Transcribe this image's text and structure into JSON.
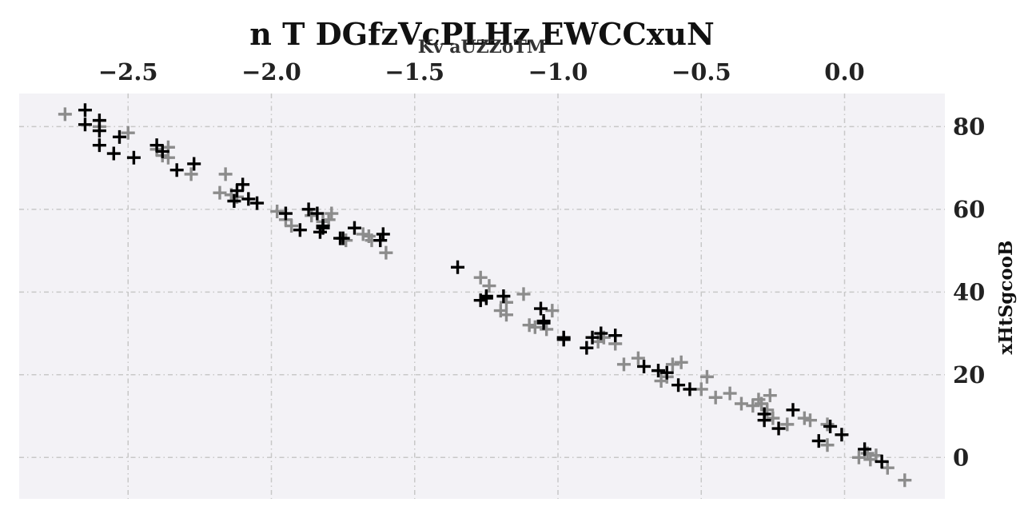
{
  "chart_data": {
    "type": "scatter",
    "title": "n T DGfzVcPLHz EWCCxuN",
    "xlabel": "Kv aUZZoTM",
    "ylabel": "xHtSgcooB",
    "xlim": [
      -2.88,
      0.35
    ],
    "ylim": [
      -10,
      88
    ],
    "x_axis_position": "top",
    "y_axis_position": "right",
    "xticks": [
      -2.5,
      -2.0,
      -1.5,
      -1.0,
      -0.5,
      0.0
    ],
    "xtick_labels": [
      "−2.5",
      "−2.0",
      "−1.5",
      "−1.0",
      "−0.5",
      "0.0"
    ],
    "yticks": [
      0,
      20,
      40,
      60,
      80
    ],
    "ytick_labels": [
      "0",
      "20",
      "40",
      "60",
      "80"
    ],
    "grid": true,
    "marker": "plus",
    "colors": {
      "background": "#f3f2f6",
      "grid": "#c8c8c8",
      "dark": "#000000",
      "light": "#8c8c8c"
    },
    "series": [
      {
        "color": "#000000",
        "points": [
          [
            -2.65,
            84
          ],
          [
            -2.65,
            80.5
          ],
          [
            -2.6,
            81.5
          ],
          [
            -2.6,
            79
          ],
          [
            -2.6,
            75.5
          ],
          [
            -2.55,
            73.5
          ],
          [
            -2.53,
            77.5
          ],
          [
            -2.48,
            72.5
          ],
          [
            -2.4,
            75.5
          ],
          [
            -2.38,
            74
          ],
          [
            -2.33,
            69.5
          ],
          [
            -2.27,
            71
          ],
          [
            -2.13,
            62
          ],
          [
            -2.12,
            64.5
          ],
          [
            -2.1,
            66
          ],
          [
            -2.08,
            62.5
          ],
          [
            -2.05,
            61.5
          ],
          [
            -1.95,
            59
          ],
          [
            -1.9,
            55
          ],
          [
            -1.87,
            60
          ],
          [
            -1.84,
            59
          ],
          [
            -1.83,
            54.5
          ],
          [
            -1.82,
            55.5
          ],
          [
            -1.82,
            56
          ],
          [
            -1.76,
            53
          ],
          [
            -1.75,
            53
          ],
          [
            -1.71,
            55.5
          ],
          [
            -1.62,
            52.5
          ],
          [
            -1.61,
            54
          ],
          [
            -1.35,
            46
          ],
          [
            -1.27,
            38
          ],
          [
            -1.25,
            38.5
          ],
          [
            -1.25,
            39
          ],
          [
            -1.19,
            39
          ],
          [
            -1.06,
            36
          ],
          [
            -1.05,
            33
          ],
          [
            -1.05,
            32.5
          ],
          [
            -0.98,
            28.5
          ],
          [
            -0.98,
            29
          ],
          [
            -0.9,
            26.5
          ],
          [
            -0.88,
            29
          ],
          [
            -0.85,
            30
          ],
          [
            -0.8,
            29.5
          ],
          [
            -0.7,
            22
          ],
          [
            -0.65,
            21
          ],
          [
            -0.62,
            20.5
          ],
          [
            -0.58,
            17.5
          ],
          [
            -0.54,
            16.5
          ],
          [
            -0.28,
            9
          ],
          [
            -0.28,
            10.5
          ],
          [
            -0.23,
            7
          ],
          [
            -0.18,
            11.5
          ],
          [
            -0.09,
            4
          ],
          [
            -0.05,
            7.5
          ],
          [
            -0.01,
            5.5
          ],
          [
            0.07,
            2
          ],
          [
            0.13,
            -1
          ]
        ]
      },
      {
        "color": "#8c8c8c",
        "points": [
          [
            -2.72,
            83
          ],
          [
            -2.6,
            80
          ],
          [
            -2.5,
            78.5
          ],
          [
            -2.4,
            74.5
          ],
          [
            -2.38,
            73
          ],
          [
            -2.36,
            72.5
          ],
          [
            -2.36,
            75
          ],
          [
            -2.28,
            68.5
          ],
          [
            -2.18,
            64
          ],
          [
            -2.16,
            68.5
          ],
          [
            -2.14,
            63.5
          ],
          [
            -2.12,
            63
          ],
          [
            -1.98,
            59.5
          ],
          [
            -1.95,
            57.5
          ],
          [
            -1.93,
            56
          ],
          [
            -1.86,
            58.5
          ],
          [
            -1.82,
            57
          ],
          [
            -1.8,
            57.5
          ],
          [
            -1.79,
            59
          ],
          [
            -1.74,
            52.5
          ],
          [
            -1.68,
            54
          ],
          [
            -1.66,
            53.5
          ],
          [
            -1.65,
            52.5
          ],
          [
            -1.6,
            49.5
          ],
          [
            -1.27,
            43.5
          ],
          [
            -1.24,
            41.5
          ],
          [
            -1.2,
            35.5
          ],
          [
            -1.18,
            37.5
          ],
          [
            -1.18,
            34.5
          ],
          [
            -1.12,
            39.5
          ],
          [
            -1.1,
            32
          ],
          [
            -1.08,
            31.5
          ],
          [
            -1.04,
            31
          ],
          [
            -1.02,
            35.5
          ],
          [
            -0.86,
            28
          ],
          [
            -0.84,
            29
          ],
          [
            -0.8,
            27.5
          ],
          [
            -0.77,
            22.5
          ],
          [
            -0.72,
            24
          ],
          [
            -0.64,
            18.5
          ],
          [
            -0.62,
            19.5
          ],
          [
            -0.6,
            22.5
          ],
          [
            -0.57,
            23
          ],
          [
            -0.5,
            16.5
          ],
          [
            -0.48,
            19.5
          ],
          [
            -0.45,
            14.5
          ],
          [
            -0.4,
            15.5
          ],
          [
            -0.36,
            13
          ],
          [
            -0.32,
            12.5
          ],
          [
            -0.3,
            14
          ],
          [
            -0.29,
            13
          ],
          [
            -0.27,
            11.5
          ],
          [
            -0.26,
            15
          ],
          [
            -0.25,
            9.5
          ],
          [
            -0.2,
            8
          ],
          [
            -0.14,
            9.5
          ],
          [
            -0.12,
            9
          ],
          [
            -0.06,
            8
          ],
          [
            -0.06,
            3
          ],
          [
            0.05,
            0
          ],
          [
            0.08,
            1
          ],
          [
            0.09,
            -0.5
          ],
          [
            0.11,
            0.5
          ],
          [
            0.15,
            -2.5
          ],
          [
            0.21,
            -5.5
          ]
        ]
      }
    ]
  }
}
